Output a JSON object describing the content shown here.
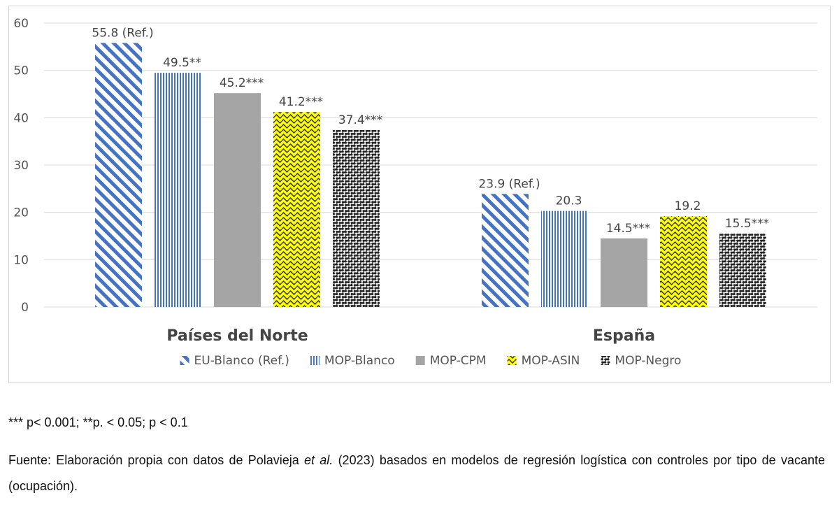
{
  "chart_data": {
    "type": "bar",
    "categories": [
      "Países del Norte",
      "España"
    ],
    "series": [
      {
        "name": "EU-Blanco (Ref.)",
        "values": [
          55.8,
          23.9
        ],
        "labels": [
          "55.8 (Ref.)",
          "23.9 (Ref.)"
        ],
        "color": "#4472c4",
        "pattern": "diagonal-stripes"
      },
      {
        "name": "MOP-Blanco",
        "values": [
          49.5,
          20.3
        ],
        "labels": [
          "49.5**",
          "20.3"
        ],
        "color": "#4472c4",
        "pattern": "vertical-stripes"
      },
      {
        "name": "MOP-CPM",
        "values": [
          45.2,
          14.5
        ],
        "labels": [
          "45.2***",
          "14.5***"
        ],
        "color": "#a5a5a5",
        "pattern": "solid"
      },
      {
        "name": "MOP-ASIN",
        "values": [
          41.2,
          19.2
        ],
        "labels": [
          "41.2***",
          "19.2"
        ],
        "color": "#ffff00",
        "pattern": "wave"
      },
      {
        "name": "MOP-Negro",
        "values": [
          37.4,
          15.5
        ],
        "labels": [
          "37.4***",
          "15.5***"
        ],
        "color": "#222222",
        "pattern": "zigzag"
      }
    ],
    "ylim": [
      0,
      60
    ],
    "yticks": [
      0,
      10,
      20,
      30,
      40,
      50,
      60
    ],
    "grid": true,
    "legend": "bottom"
  },
  "notes": {
    "significance": "*** p< 0.001; **p. < 0.05; p < 0.1",
    "source_prefix": "Fuente: Elaboración propia con datos de Polavieja ",
    "source_italic": "et al.",
    "source_suffix": " (2023) basados en modelos de regresión logística con controles por tipo de vacante (ocupación)."
  }
}
